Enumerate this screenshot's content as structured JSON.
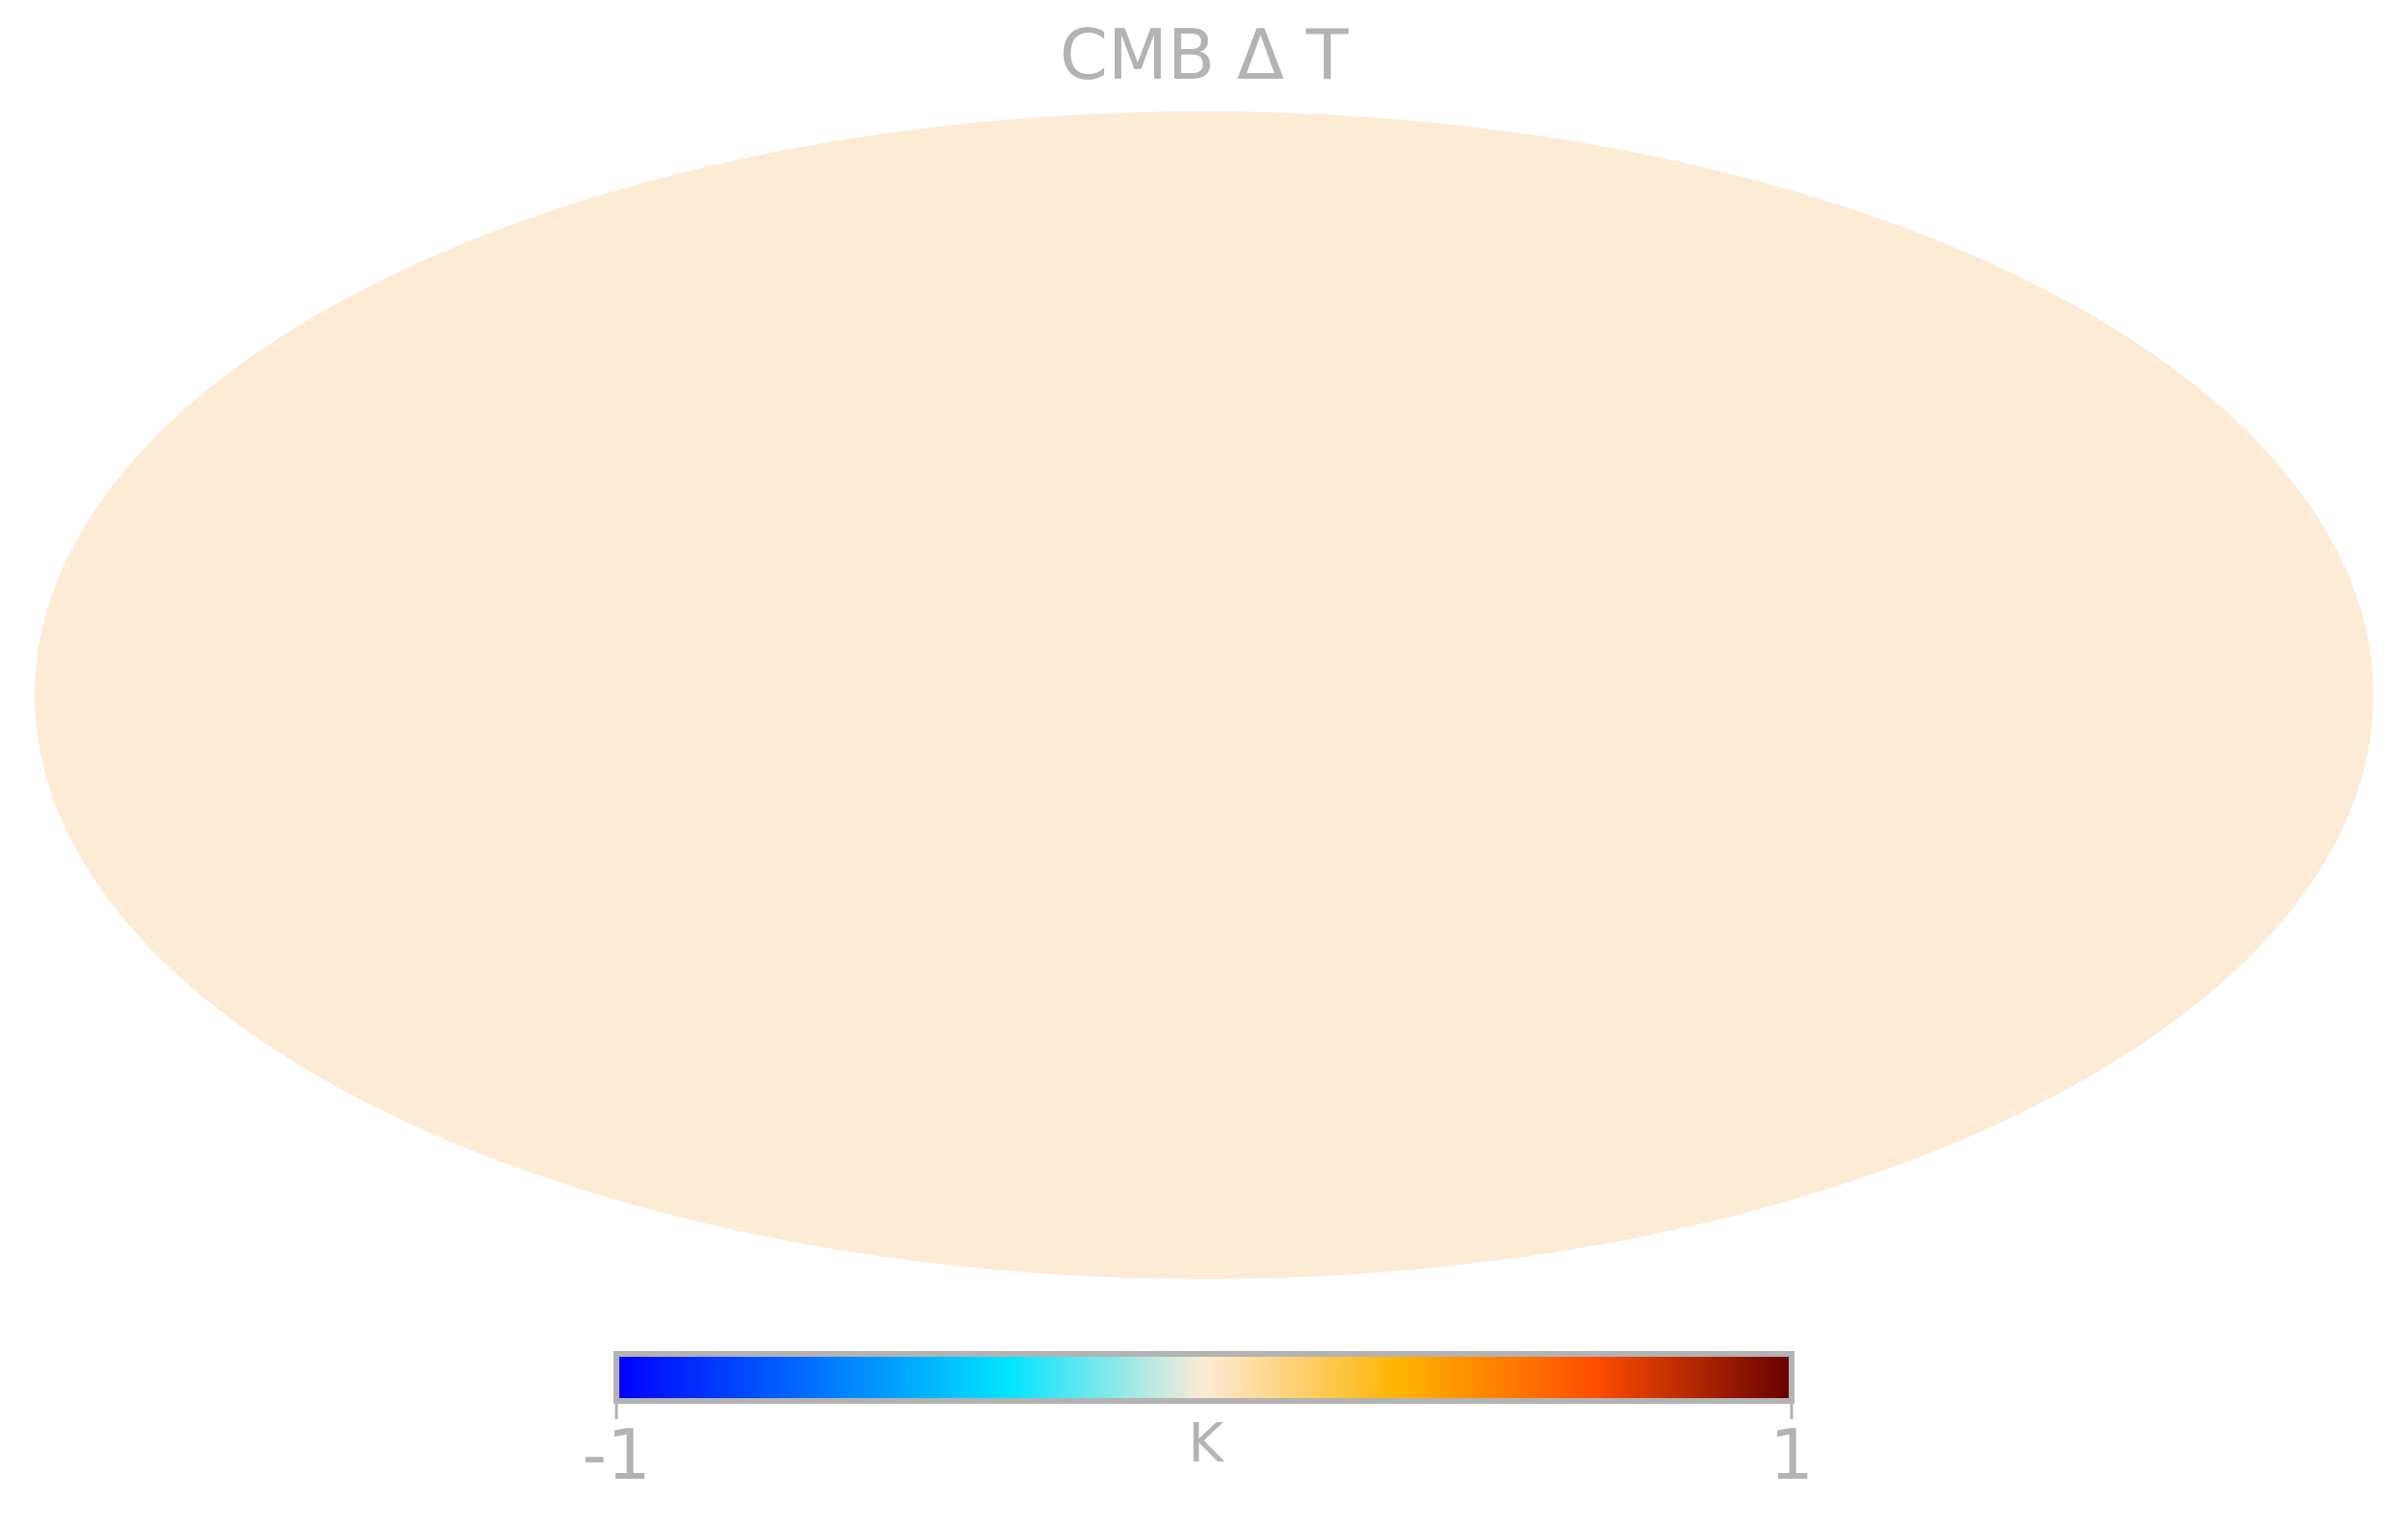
{
  "chart_data": {
    "type": "heatmap",
    "projection": "mollweide",
    "title": "CMB Δ T",
    "map_fill_color": "#fdebd6",
    "map_value_approx": 0.0,
    "colorbar": {
      "orientation": "horizontal",
      "placement": "bottom",
      "min": -1,
      "max": 1,
      "unit": "K",
      "tick_labels": [
        "-1",
        "1"
      ],
      "colors": [
        "#0000ff",
        "#0070ff",
        "#00e5ff",
        "#fdebd6",
        "#ffb300",
        "#ff4d00",
        "#660000"
      ],
      "border_color": "#b3b3b3"
    },
    "text_color": "#b3b3b3",
    "grid": false
  }
}
